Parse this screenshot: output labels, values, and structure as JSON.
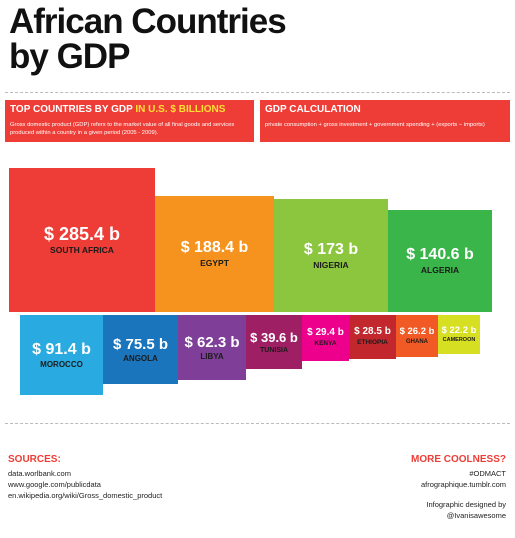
{
  "title": {
    "line1": "African Countries",
    "line2": "by GDP"
  },
  "top_panel": {
    "heading_lead": "TOP COUNTRIES BY GDP",
    "heading_highlight": "IN U.S. $ BILLIONS",
    "description": "Gross domestic product (GDP) refers to the market value of all final goods and services produced within a country in a given period (2005 - 2009)."
  },
  "calc_panel": {
    "heading": "GDP CALCULATION",
    "formula": "private consumption + gross investment + government spending + (exports − imports)"
  },
  "chart_data": {
    "type": "treemap",
    "unit": "U.S. $ billions",
    "categories": [
      "South Africa",
      "Egypt",
      "Nigeria",
      "Algeria",
      "Morocco",
      "Angola",
      "Libya",
      "Tunisia",
      "Kenya",
      "Ethiopia",
      "Ghana",
      "Cameroon"
    ],
    "values": [
      285.4,
      188.4,
      173,
      140.6,
      91.4,
      75.5,
      62.3,
      39.6,
      29.4,
      28.5,
      26.2,
      22.2
    ],
    "labels": [
      {
        "value": "$ 285.4 b",
        "name": "SOUTH AFRICA",
        "color": "#ee3d36"
      },
      {
        "value": "$ 188.4 b",
        "name": "EGYPT",
        "color": "#f6931e"
      },
      {
        "value": "$ 173 b",
        "name": "NIGERIA",
        "color": "#8cc63e"
      },
      {
        "value": "$ 140.6 b",
        "name": "ALGERIA",
        "color": "#39b54a"
      },
      {
        "value": "$ 91.4 b",
        "name": "MOROCCO",
        "color": "#29abe2"
      },
      {
        "value": "$ 75.5 b",
        "name": "ANGOLA",
        "color": "#1b75bc"
      },
      {
        "value": "$ 62.3 b",
        "name": "LIBYA",
        "color": "#7f3f98"
      },
      {
        "value": "$ 39.6 b",
        "name": "TUNISIA",
        "color": "#9e1f63"
      },
      {
        "value": "$ 29.4 b",
        "name": "KENYA",
        "color": "#ec008c"
      },
      {
        "value": "$ 28.5 b",
        "name": "ETHIOPIA",
        "color": "#c1272d"
      },
      {
        "value": "$ 26.2 b",
        "name": "GHANA",
        "color": "#f15a24"
      },
      {
        "value": "$ 22.2 b",
        "name": "CAMEROON",
        "color": "#d7df23"
      }
    ]
  },
  "sources": {
    "heading": "SOURCES:",
    "items": [
      "data.worlbank.com",
      "www.google.com/publicdata",
      "en.wikipedia.org/wiki/Gross_domestic_product"
    ]
  },
  "more": {
    "heading": "MORE COOLNESS?",
    "hashtag": "#ODMACT",
    "site": "afrographique.tumblr.com",
    "credit_line1": "Infographic designed by",
    "credit_line2": "@Ivanisawesome"
  }
}
